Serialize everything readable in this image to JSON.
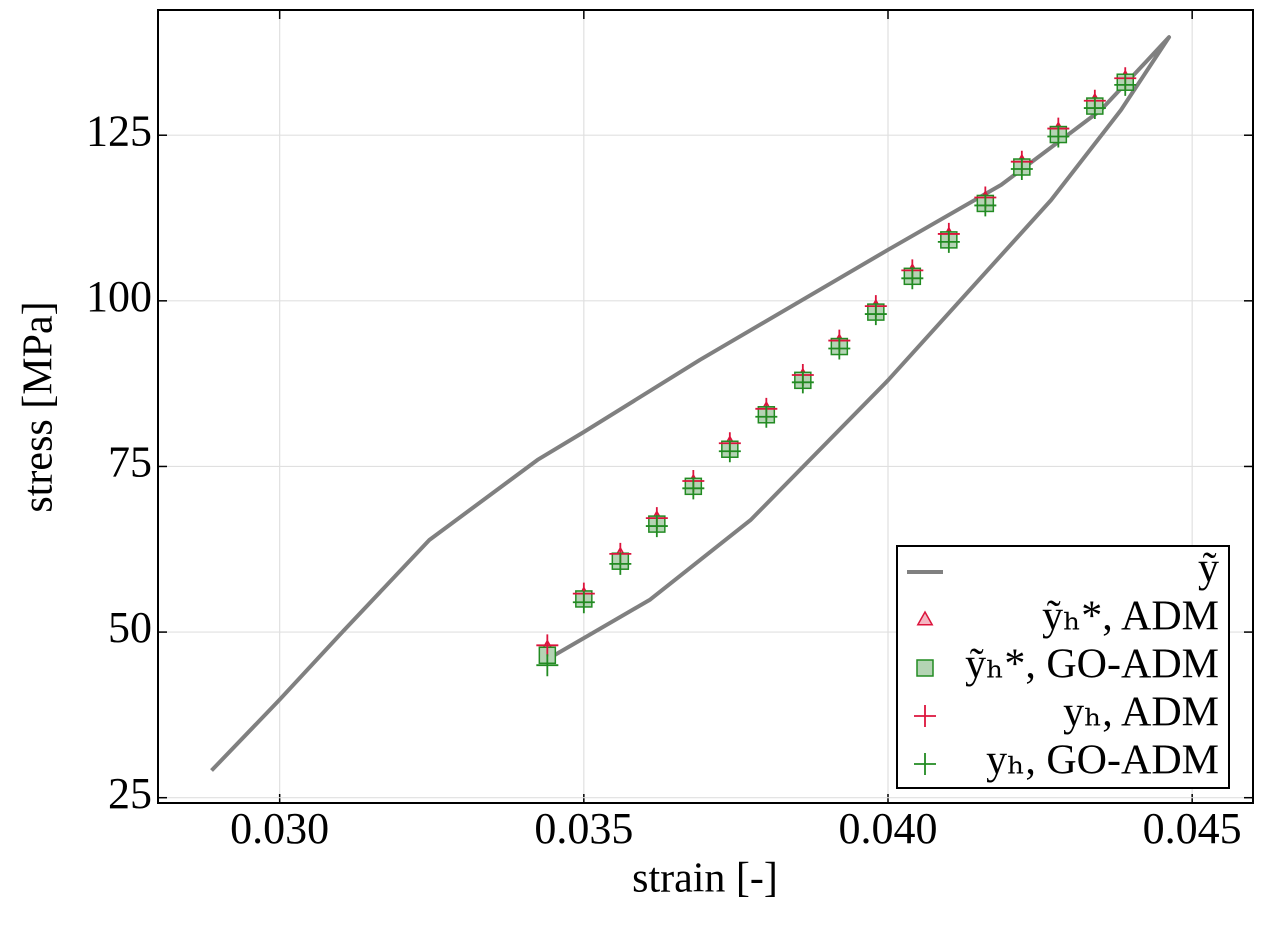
{
  "chart_data": {
    "type": "scatter",
    "x_label": "strain [-]",
    "y_label": "stress [MPa]",
    "xlim": [
      0.028,
      0.046
    ],
    "ylim": [
      24.2,
      143.9
    ],
    "xticks": [
      {
        "value": 0.03,
        "label": "0.030"
      },
      {
        "value": 0.035,
        "label": "0.035"
      },
      {
        "value": 0.04,
        "label": "0.040"
      },
      {
        "value": 0.045,
        "label": "0.045"
      }
    ],
    "yticks": [
      25,
      50,
      75,
      100,
      125
    ],
    "grid": true,
    "legend": "lower right",
    "series": [
      {
        "name": "ỹ",
        "color": "#808080",
        "marker": "line",
        "x": [
          0.02888,
          0.03,
          0.03106,
          0.03246,
          0.03424,
          0.035,
          0.03691,
          0.04,
          0.04186,
          0.0435,
          0.04462,
          0.04383,
          0.04268,
          0.04,
          0.03774,
          0.03609,
          0.03444
        ],
        "values": [
          29.1,
          39.8,
          50.3,
          63.9,
          76,
          80.2,
          91.1,
          107.7,
          117.5,
          128.8,
          139.8,
          128.8,
          115.2,
          88,
          66.9,
          54.9,
          46.1
        ]
      },
      {
        "name": "ỹₕ*, ADM",
        "color": "#dc143c",
        "marker": "triangle",
        "x": [
          0.0344,
          0.035,
          0.0356,
          0.0362,
          0.0368,
          0.0374,
          0.038,
          0.0386,
          0.0392,
          0.0398,
          0.0404,
          0.041,
          0.0416,
          0.0422,
          0.0428,
          0.0434,
          0.0439
        ],
        "values": [
          47.5,
          55.5,
          61.5,
          67,
          72.5,
          78.3,
          83.5,
          88.5,
          93.7,
          98.9,
          104.3,
          109.8,
          115.3,
          120.8,
          125.7,
          130,
          133.5
        ]
      },
      {
        "name": "ỹₕ*, GO-ADM",
        "color": "#228b22",
        "marker": "square",
        "x": [
          0.0344,
          0.035,
          0.0356,
          0.0362,
          0.0368,
          0.0374,
          0.038,
          0.0386,
          0.0392,
          0.0398,
          0.0404,
          0.041,
          0.0416,
          0.0422,
          0.0428,
          0.0434,
          0.0439
        ],
        "values": [
          46.5,
          55,
          60.7,
          66.3,
          72,
          77.6,
          82.8,
          88,
          93.1,
          98.3,
          103.7,
          109.2,
          114.7,
          120.2,
          125.1,
          129.4,
          133
        ]
      },
      {
        "name": "yₕ, ADM",
        "color": "#dc143c",
        "marker": "plus",
        "x": [
          0.0344,
          0.035,
          0.0356,
          0.0362,
          0.0368,
          0.0374,
          0.038,
          0.0386,
          0.0392,
          0.0398,
          0.0404,
          0.041,
          0.0416,
          0.0422,
          0.0428,
          0.0434,
          0.0439
        ],
        "values": [
          48,
          55.8,
          61.8,
          67.2,
          72.8,
          78.5,
          83.7,
          88.8,
          94,
          99.2,
          104.6,
          110.1,
          115.6,
          121,
          126,
          130.2,
          133.6
        ]
      },
      {
        "name": "yₕ, GO-ADM",
        "color": "#228b22",
        "marker": "plus",
        "x": [
          0.0344,
          0.035,
          0.0356,
          0.0362,
          0.0368,
          0.0374,
          0.038,
          0.0386,
          0.0392,
          0.0398,
          0.0404,
          0.041,
          0.0416,
          0.0422,
          0.0428,
          0.0434,
          0.0439
        ],
        "values": [
          45,
          54.5,
          60.3,
          66,
          71.7,
          77.3,
          82.5,
          87.7,
          92.8,
          98,
          103.4,
          108.9,
          114.4,
          119.9,
          124.8,
          129.1,
          132.6
        ]
      }
    ]
  }
}
